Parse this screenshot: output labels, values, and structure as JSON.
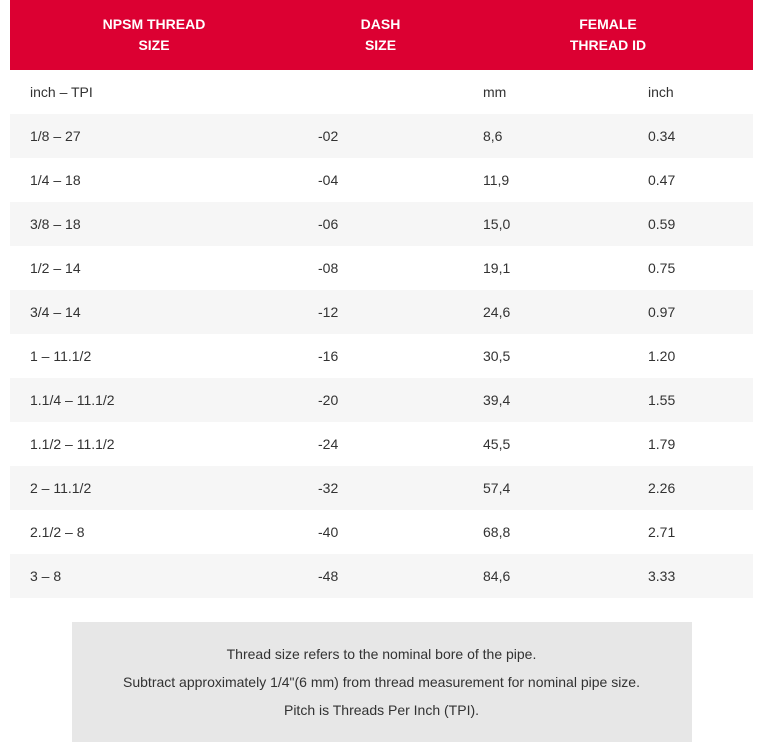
{
  "colors": {
    "header_bg": "#dc0032",
    "header_text": "#ffffff",
    "row_even_bg": "#f6f6f6",
    "row_odd_bg": "#ffffff",
    "body_text": "#323232",
    "note_bg": "#e7e7e7"
  },
  "table": {
    "headers": {
      "npsm_line1": "NPSM THREAD",
      "npsm_line2": "SIZE",
      "dash_line1": "DASH",
      "dash_line2": "SIZE",
      "female_line1": "FEMALE",
      "female_line2": "THREAD ID"
    },
    "subheaders": {
      "npsm": "inch – TPI",
      "dash": "",
      "mm": "mm",
      "inch": "inch"
    },
    "rows": [
      {
        "npsm": "1/8 – 27",
        "dash": "-02",
        "mm": "8,6",
        "inch": "0.34"
      },
      {
        "npsm": "1/4 – 18",
        "dash": "-04",
        "mm": "11,9",
        "inch": "0.47"
      },
      {
        "npsm": "3/8 – 18",
        "dash": "-06",
        "mm": "15,0",
        "inch": "0.59"
      },
      {
        "npsm": "1/2 – 14",
        "dash": "-08",
        "mm": "19,1",
        "inch": "0.75"
      },
      {
        "npsm": "3/4 – 14",
        "dash": "-12",
        "mm": "24,6",
        "inch": "0.97"
      },
      {
        "npsm": "1 – 11.1/2",
        "dash": "-16",
        "mm": "30,5",
        "inch": "1.20"
      },
      {
        "npsm": "1.1/4 – 11.1/2",
        "dash": "-20",
        "mm": "39,4",
        "inch": "1.55"
      },
      {
        "npsm": "1.1/2 – 11.1/2",
        "dash": "-24",
        "mm": "45,5",
        "inch": "1.79"
      },
      {
        "npsm": "2 – 11.1/2",
        "dash": "-32",
        "mm": "57,4",
        "inch": "2.26"
      },
      {
        "npsm": "2.1/2 – 8",
        "dash": "-40",
        "mm": "68,8",
        "inch": "2.71"
      },
      {
        "npsm": "3 – 8",
        "dash": "-48",
        "mm": "84,6",
        "inch": "3.33"
      }
    ]
  },
  "notes": {
    "line1": "Thread size refers to the nominal bore of the pipe.",
    "line2": "Subtract approximately 1/4\"(6 mm) from thread measurement for nominal pipe size.",
    "line3": "Pitch is Threads Per Inch (TPI)."
  }
}
